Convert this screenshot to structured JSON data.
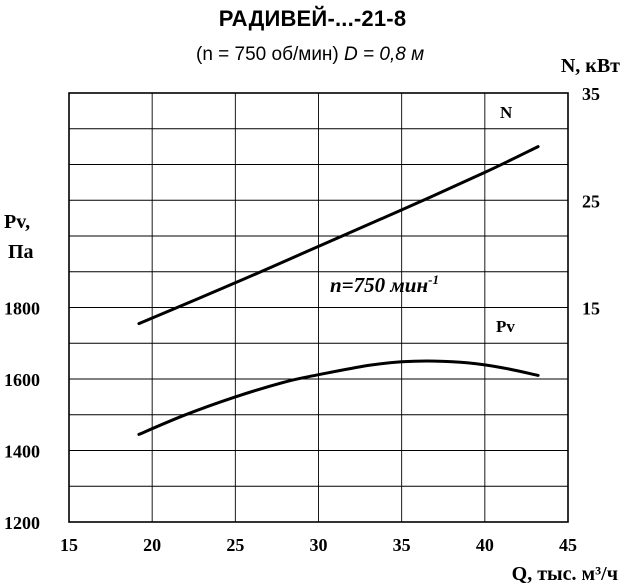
{
  "chart_data": {
    "type": "line",
    "title": "РАДИВЕЙ-...-21-8",
    "subtitle": {
      "prefix": "(n = 750 об/мин) ",
      "italic": "D = 0,8 м"
    },
    "xlabel": "Q, тыс. м³/ч",
    "ylabel_left_line1": "Pv,",
    "ylabel_left_line2": "Па",
    "ylabel_right": "N, кВт",
    "annotation_main": "n=750 мин",
    "annotation_sup": "-1",
    "grid": true,
    "x": {
      "range": [
        15,
        45
      ],
      "ticks": [
        15,
        20,
        25,
        30,
        35,
        40,
        45
      ]
    },
    "y_left": {
      "range": [
        1200,
        2400
      ],
      "ticks": [
        1200,
        1400,
        1600,
        1800
      ]
    },
    "y_right": {
      "range": [
        -5,
        35
      ],
      "ticks": [
        15,
        25,
        35
      ]
    },
    "series": [
      {
        "name": "N",
        "axis": "right",
        "x": [
          19.2,
          25,
          30,
          35,
          40,
          43.2
        ],
        "y": [
          13.5,
          17.3,
          20.7,
          24.1,
          27.6,
          30.0
        ]
      },
      {
        "name": "Pv",
        "axis": "left",
        "x": [
          19.2,
          22,
          25,
          28,
          30,
          33,
          35,
          37,
          39,
          41,
          43.2
        ],
        "y": [
          1445,
          1500,
          1550,
          1592,
          1612,
          1638,
          1648,
          1650,
          1645,
          1632,
          1610
        ]
      }
    ]
  }
}
